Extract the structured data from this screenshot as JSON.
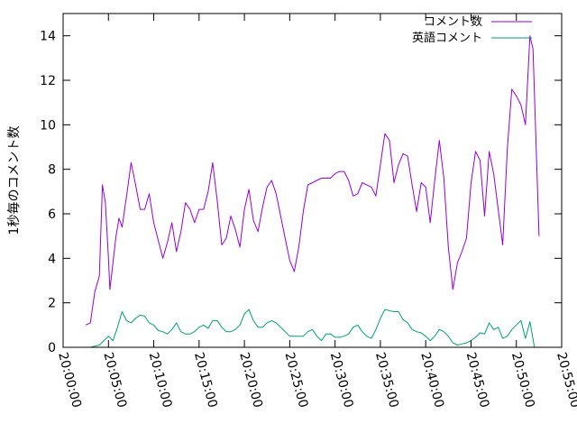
{
  "chart_data": {
    "type": "line",
    "ylabel": "1秒毎のコメント数",
    "xlabel": "",
    "ylim": [
      0,
      15
    ],
    "yticks": [
      0,
      2,
      4,
      6,
      8,
      10,
      12,
      14
    ],
    "ytick_labels": [
      "0",
      "2",
      "4",
      "6",
      "8",
      "10",
      "12",
      "14"
    ],
    "xlim": [
      "20:00:00",
      "20:55:00"
    ],
    "xticks": [
      "20:00:00",
      "20:05:00",
      "20:10:00",
      "20:15:00",
      "20:20:00",
      "20:25:00",
      "20:30:00",
      "20:35:00",
      "20:40:00",
      "20:45:00",
      "20:50:00",
      "20:55:00"
    ],
    "grid": false,
    "legend_position": "top-right",
    "series": [
      {
        "name": "コメント数",
        "color": "#9400d3",
        "points": [
          [
            "20:02:30",
            1.0
          ],
          [
            "20:03:00",
            1.1
          ],
          [
            "20:03:30",
            2.5
          ],
          [
            "20:04:00",
            3.2
          ],
          [
            "20:04:20",
            7.3
          ],
          [
            "20:04:40",
            6.5
          ],
          [
            "20:05:00",
            4.0
          ],
          [
            "20:05:10",
            2.6
          ],
          [
            "20:05:30",
            3.8
          ],
          [
            "20:05:50",
            5.0
          ],
          [
            "20:06:10",
            5.8
          ],
          [
            "20:06:30",
            5.4
          ],
          [
            "20:07:00",
            6.8
          ],
          [
            "20:07:30",
            8.3
          ],
          [
            "20:08:00",
            7.3
          ],
          [
            "20:08:30",
            6.2
          ],
          [
            "20:09:00",
            6.2
          ],
          [
            "20:09:30",
            6.9
          ],
          [
            "20:10:00",
            5.6
          ],
          [
            "20:10:30",
            4.8
          ],
          [
            "20:11:00",
            4.0
          ],
          [
            "20:11:30",
            4.7
          ],
          [
            "20:12:00",
            5.6
          ],
          [
            "20:12:30",
            4.3
          ],
          [
            "20:13:00",
            5.2
          ],
          [
            "20:13:30",
            6.5
          ],
          [
            "20:14:00",
            6.2
          ],
          [
            "20:14:30",
            5.6
          ],
          [
            "20:15:00",
            6.2
          ],
          [
            "20:15:30",
            6.2
          ],
          [
            "20:16:00",
            7.0
          ],
          [
            "20:16:30",
            8.3
          ],
          [
            "20:17:00",
            6.6
          ],
          [
            "20:17:30",
            4.6
          ],
          [
            "20:18:00",
            4.9
          ],
          [
            "20:18:30",
            5.9
          ],
          [
            "20:19:00",
            5.3
          ],
          [
            "20:19:30",
            4.5
          ],
          [
            "20:20:00",
            6.2
          ],
          [
            "20:20:30",
            7.1
          ],
          [
            "20:21:00",
            5.7
          ],
          [
            "20:21:30",
            5.2
          ],
          [
            "20:22:00",
            6.3
          ],
          [
            "20:22:30",
            7.2
          ],
          [
            "20:23:00",
            7.5
          ],
          [
            "20:23:30",
            6.9
          ],
          [
            "20:24:00",
            5.9
          ],
          [
            "20:24:30",
            4.9
          ],
          [
            "20:25:00",
            3.9
          ],
          [
            "20:25:30",
            3.4
          ],
          [
            "20:26:00",
            4.5
          ],
          [
            "20:26:30",
            6.1
          ],
          [
            "20:27:00",
            7.3
          ],
          [
            "20:27:30",
            7.4
          ],
          [
            "20:28:00",
            7.5
          ],
          [
            "20:28:30",
            7.6
          ],
          [
            "20:29:00",
            7.6
          ],
          [
            "20:29:30",
            7.6
          ],
          [
            "20:30:00",
            7.8
          ],
          [
            "20:30:30",
            7.9
          ],
          [
            "20:31:00",
            7.9
          ],
          [
            "20:31:30",
            7.5
          ],
          [
            "20:32:00",
            6.8
          ],
          [
            "20:32:30",
            6.9
          ],
          [
            "20:33:00",
            7.4
          ],
          [
            "20:33:30",
            7.3
          ],
          [
            "20:34:00",
            7.2
          ],
          [
            "20:34:30",
            6.8
          ],
          [
            "20:35:00",
            8.2
          ],
          [
            "20:35:30",
            9.6
          ],
          [
            "20:36:00",
            9.3
          ],
          [
            "20:36:30",
            7.4
          ],
          [
            "20:37:00",
            8.2
          ],
          [
            "20:37:30",
            8.7
          ],
          [
            "20:38:00",
            8.6
          ],
          [
            "20:38:30",
            7.3
          ],
          [
            "20:39:00",
            6.1
          ],
          [
            "20:39:30",
            7.4
          ],
          [
            "20:40:00",
            7.2
          ],
          [
            "20:40:30",
            5.6
          ],
          [
            "20:41:00",
            7.5
          ],
          [
            "20:41:30",
            9.3
          ],
          [
            "20:42:00",
            7.6
          ],
          [
            "20:42:30",
            4.5
          ],
          [
            "20:43:00",
            2.6
          ],
          [
            "20:43:30",
            3.8
          ],
          [
            "20:44:00",
            4.3
          ],
          [
            "20:44:30",
            4.9
          ],
          [
            "20:45:00",
            7.4
          ],
          [
            "20:45:30",
            8.8
          ],
          [
            "20:46:00",
            8.4
          ],
          [
            "20:46:30",
            5.9
          ],
          [
            "20:47:00",
            8.8
          ],
          [
            "20:47:30",
            7.8
          ],
          [
            "20:48:00",
            6.2
          ],
          [
            "20:48:30",
            4.6
          ],
          [
            "20:49:00",
            8.9
          ],
          [
            "20:49:30",
            11.6
          ],
          [
            "20:50:00",
            11.3
          ],
          [
            "20:50:30",
            10.9
          ],
          [
            "20:51:00",
            10.0
          ],
          [
            "20:51:30",
            14.0
          ],
          [
            "20:51:50",
            13.4
          ],
          [
            "20:52:30",
            5.0
          ]
        ]
      },
      {
        "name": "英語コメント",
        "color": "#009e73",
        "points": [
          [
            "20:03:00",
            0.0
          ],
          [
            "20:04:00",
            0.1
          ],
          [
            "20:04:30",
            0.3
          ],
          [
            "20:05:00",
            0.5
          ],
          [
            "20:05:30",
            0.3
          ],
          [
            "20:06:00",
            0.9
          ],
          [
            "20:06:30",
            1.6
          ],
          [
            "20:07:00",
            1.2
          ],
          [
            "20:07:30",
            1.1
          ],
          [
            "20:08:00",
            1.3
          ],
          [
            "20:08:30",
            1.45
          ],
          [
            "20:09:00",
            1.4
          ],
          [
            "20:09:30",
            1.1
          ],
          [
            "20:10:00",
            1.0
          ],
          [
            "20:10:30",
            0.75
          ],
          [
            "20:11:00",
            0.7
          ],
          [
            "20:11:30",
            0.6
          ],
          [
            "20:12:00",
            0.8
          ],
          [
            "20:12:30",
            1.1
          ],
          [
            "20:13:00",
            0.7
          ],
          [
            "20:13:30",
            0.6
          ],
          [
            "20:14:00",
            0.6
          ],
          [
            "20:14:30",
            0.7
          ],
          [
            "20:15:00",
            0.9
          ],
          [
            "20:15:30",
            1.0
          ],
          [
            "20:16:00",
            0.85
          ],
          [
            "20:16:30",
            1.2
          ],
          [
            "20:17:00",
            1.2
          ],
          [
            "20:17:30",
            0.9
          ],
          [
            "20:18:00",
            0.7
          ],
          [
            "20:18:30",
            0.7
          ],
          [
            "20:19:00",
            0.8
          ],
          [
            "20:19:30",
            1.0
          ],
          [
            "20:20:00",
            1.5
          ],
          [
            "20:20:30",
            1.7
          ],
          [
            "20:21:00",
            1.2
          ],
          [
            "20:21:30",
            0.9
          ],
          [
            "20:22:00",
            0.9
          ],
          [
            "20:22:30",
            1.1
          ],
          [
            "20:23:00",
            1.2
          ],
          [
            "20:23:30",
            1.1
          ],
          [
            "20:24:00",
            0.9
          ],
          [
            "20:24:30",
            0.7
          ],
          [
            "20:25:00",
            0.5
          ],
          [
            "20:25:30",
            0.5
          ],
          [
            "20:26:00",
            0.5
          ],
          [
            "20:26:30",
            0.5
          ],
          [
            "20:27:00",
            0.7
          ],
          [
            "20:27:30",
            0.8
          ],
          [
            "20:28:00",
            0.5
          ],
          [
            "20:28:30",
            0.3
          ],
          [
            "20:29:00",
            0.6
          ],
          [
            "20:29:30",
            0.6
          ],
          [
            "20:30:00",
            0.45
          ],
          [
            "20:30:30",
            0.45
          ],
          [
            "20:31:00",
            0.5
          ],
          [
            "20:31:30",
            0.6
          ],
          [
            "20:32:00",
            0.9
          ],
          [
            "20:32:30",
            1.0
          ],
          [
            "20:33:00",
            0.7
          ],
          [
            "20:33:30",
            0.5
          ],
          [
            "20:34:00",
            0.4
          ],
          [
            "20:34:30",
            0.8
          ],
          [
            "20:35:00",
            1.3
          ],
          [
            "20:35:30",
            1.7
          ],
          [
            "20:36:00",
            1.65
          ],
          [
            "20:36:30",
            1.6
          ],
          [
            "20:37:00",
            1.6
          ],
          [
            "20:37:30",
            1.25
          ],
          [
            "20:38:00",
            1.1
          ],
          [
            "20:38:30",
            0.8
          ],
          [
            "20:39:00",
            0.7
          ],
          [
            "20:39:30",
            0.65
          ],
          [
            "20:40:00",
            0.5
          ],
          [
            "20:40:30",
            0.3
          ],
          [
            "20:41:00",
            0.5
          ],
          [
            "20:41:30",
            0.8
          ],
          [
            "20:42:00",
            0.7
          ],
          [
            "20:42:30",
            0.5
          ],
          [
            "20:43:00",
            0.2
          ],
          [
            "20:43:30",
            0.1
          ],
          [
            "20:44:00",
            0.15
          ],
          [
            "20:44:30",
            0.2
          ],
          [
            "20:45:00",
            0.3
          ],
          [
            "20:45:30",
            0.45
          ],
          [
            "20:46:00",
            0.65
          ],
          [
            "20:46:30",
            0.6
          ],
          [
            "20:47:00",
            1.1
          ],
          [
            "20:47:30",
            0.8
          ],
          [
            "20:48:00",
            0.9
          ],
          [
            "20:48:30",
            0.4
          ],
          [
            "20:49:00",
            0.5
          ],
          [
            "20:49:30",
            0.8
          ],
          [
            "20:50:00",
            1.0
          ],
          [
            "20:50:30",
            1.2
          ],
          [
            "20:51:00",
            0.4
          ],
          [
            "20:51:30",
            1.15
          ],
          [
            "20:52:00",
            0.0
          ]
        ]
      }
    ]
  }
}
